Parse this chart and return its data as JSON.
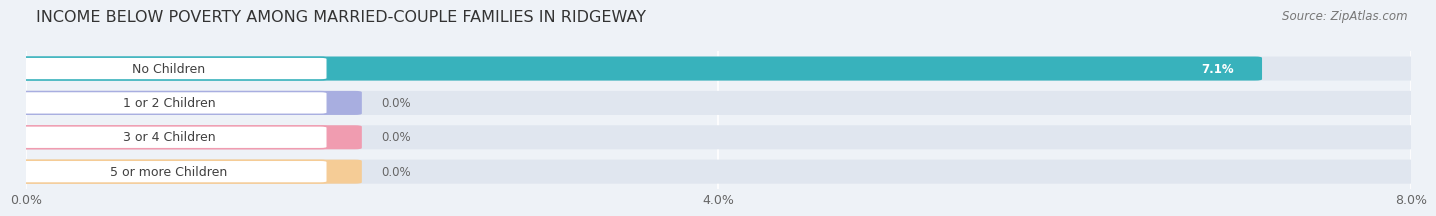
{
  "title": "INCOME BELOW POVERTY AMONG MARRIED-COUPLE FAMILIES IN RIDGEWAY",
  "source": "Source: ZipAtlas.com",
  "categories": [
    "No Children",
    "1 or 2 Children",
    "3 or 4 Children",
    "5 or more Children"
  ],
  "values": [
    7.1,
    0.0,
    0.0,
    0.0
  ],
  "bar_colors": [
    "#38b2bc",
    "#a8aee0",
    "#f09cb0",
    "#f5cc96"
  ],
  "xlim_max": 8.0,
  "xticks": [
    0.0,
    4.0,
    8.0
  ],
  "xtick_labels": [
    "0.0%",
    "4.0%",
    "8.0%"
  ],
  "background_color": "#eef2f7",
  "bar_bg_color": "#e0e6ef",
  "title_fontsize": 11.5,
  "label_fontsize": 9.0,
  "value_fontsize": 8.5,
  "source_fontsize": 8.5,
  "zero_bar_width": 1.9
}
